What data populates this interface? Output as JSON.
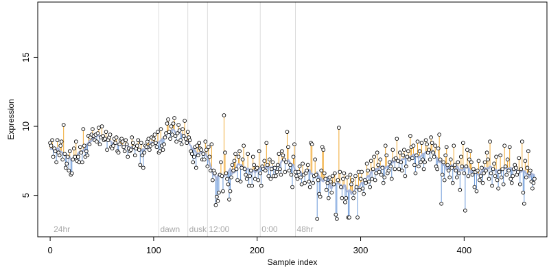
{
  "chart_data": {
    "type": "scatter",
    "title": "",
    "xlabel": "Sample index",
    "ylabel": "Expression",
    "xlim": [
      -12,
      480
    ],
    "ylim": [
      2,
      19
    ],
    "xticks": [
      0,
      100,
      200,
      300,
      400
    ],
    "yticks": [
      5,
      10,
      15
    ],
    "grid": false,
    "legend": "none",
    "baseline": {
      "description": "smoothed trend line drawn from points",
      "color": "#a6b4d8"
    },
    "stem_colors": {
      "above": "#f0a830",
      "below": "#6a98d8"
    },
    "point_style": {
      "fill": "#ffffff",
      "stroke": "#000000"
    },
    "markers": [
      {
        "x": 2,
        "label": "24hr"
      },
      {
        "x": 105,
        "label": "dawn"
      },
      {
        "x": 133,
        "label": "dusk"
      },
      {
        "x": 152,
        "label": "12:00"
      },
      {
        "x": 203,
        "label": "0:00"
      },
      {
        "x": 237,
        "label": "48hr"
      }
    ],
    "series": [
      {
        "values": [
          8.8,
          8.6,
          9.0,
          7.8,
          8.4,
          8.2,
          7.4,
          9.0,
          8.1,
          7.9,
          8.6,
          8.9,
          7.6,
          10.1,
          8.0,
          7.0,
          7.3,
          7.8,
          6.8,
          8.2,
          6.5,
          6.6,
          7.6,
          8.4,
          7.8,
          8.9,
          7.5,
          7.8,
          7.4,
          8.5,
          8.1,
          7.4,
          9.8,
          8.6,
          7.8,
          8.2,
          7.9,
          9.3,
          8.7,
          9.2,
          9.4,
          9.8,
          9.3,
          9.0,
          9.4,
          8.9,
          9.5,
          9.9,
          8.7,
          9.2,
          10.0,
          9.3,
          9.0,
          9.1,
          9.6,
          8.3,
          9.0,
          9.2,
          9.4,
          8.5,
          8.4,
          8.6,
          9.1,
          8.8,
          9.2,
          8.2,
          8.1,
          8.7,
          9.0,
          9.1,
          8.9,
          8.5,
          8.2,
          9.0,
          8.7,
          7.8,
          8.4,
          8.2,
          8.3,
          9.2,
          8.8,
          8.5,
          7.9,
          8.4,
          8.6,
          9.0,
          8.3,
          7.2,
          8.8,
          7.9,
          7.0,
          8.1,
          8.6,
          8.5,
          8.9,
          9.1,
          8.3,
          8.6,
          9.2,
          8.7,
          9.1,
          9.4,
          8.8,
          8.5,
          9.6,
          8.1,
          8.2,
          9.8,
          8.6,
          8.3,
          8.7,
          9.2,
          9.5,
          10.2,
          10.5,
          9.6,
          9.1,
          10.0,
          9.4,
          10.2,
          10.6,
          9.3,
          8.9,
          9.5,
          10.1,
          9.7,
          9.0,
          8.7,
          9.8,
          9.3,
          10.4,
          9.1,
          8.8,
          9.6,
          9.2,
          9.0,
          8.2,
          8.0,
          7.4,
          7.8,
          8.5,
          7.0,
          8.6,
          7.9,
          8.8,
          8.4,
          8.3,
          7.6,
          8.0,
          7.6,
          8.9,
          8.3,
          7.1,
          8.5,
          7.8,
          6.8,
          8.7,
          6.1,
          6.8,
          6.6,
          4.3,
          4.9,
          4.6,
          5.2,
          6.5,
          7.4,
          6.4,
          5.3,
          10.8,
          8.1,
          6.6,
          6.2,
          5.8,
          4.7,
          5.3,
          6.3,
          7.2,
          6.8,
          7.5,
          8.0,
          6.9,
          6.1,
          7.8,
          8.2,
          6.0,
          7.0,
          7.6,
          8.6,
          6.9,
          6.5,
          6.2,
          8.0,
          5.7,
          6.4,
          6.8,
          5.7,
          7.8,
          7.2,
          6.2,
          6.9,
          7.0,
          6.1,
          8.2,
          6.6,
          5.7,
          7.1,
          6.9,
          7.5,
          6.8,
          8.8,
          7.2,
          6.4,
          7.6,
          6.2,
          6.9,
          7.4,
          6.4,
          7.0,
          6.4,
          6.7,
          7.2,
          8.0,
          6.9,
          6.5,
          8.2,
          7.9,
          7.6,
          6.7,
          7.4,
          9.6,
          8.5,
          6.8,
          7.2,
          6.5,
          5.6,
          7.8,
          8.7,
          6.7,
          6.4,
          6.2,
          6.7,
          7.1,
          6.3,
          5.8,
          7.3,
          6.5,
          5.9,
          6.6,
          6.8,
          7.2,
          6.0,
          5.6,
          8.8,
          8.7,
          5.9,
          6.4,
          7.6,
          6.5,
          3.3,
          6.1,
          5.1,
          4.9,
          6.8,
          8.5,
          8.3,
          6.6,
          6.2,
          5.4,
          5.9,
          4.8,
          6.3,
          6.0,
          5.2,
          6.4,
          5.8,
          6.6,
          3.6,
          3.3,
          6.1,
          9.9,
          6.7,
          5.6,
          4.8,
          6.2,
          6.6,
          4.5,
          4.8,
          6.3,
          3.4,
          3.4,
          6.5,
          5.8,
          6.1,
          4.8,
          5.2,
          6.4,
          5.6,
          3.4,
          6.7,
          5.4,
          6.2,
          6.7,
          5.5,
          5.1,
          6.1,
          5.9,
          7.3,
          6.8,
          6.0,
          5.6,
          7.5,
          6.2,
          6.9,
          7.8,
          6.1,
          6.6,
          8.1,
          7.2,
          6.7,
          7.6,
          6.5,
          7.0,
          5.9,
          6.3,
          8.6,
          7.9,
          6.6,
          6.8,
          7.4,
          7.1,
          6.2,
          8.3,
          7.6,
          6.9,
          7.7,
          9.1,
          7.5,
          6.9,
          8.1,
          7.4,
          6.8,
          7.9,
          8.3,
          6.4,
          7.1,
          7.8,
          8.2,
          7.6,
          9.3,
          8.5,
          7.7,
          8.6,
          7.2,
          6.6,
          7.9,
          8.9,
          7.1,
          8.2,
          7.4,
          8.8,
          7.6,
          6.9,
          7.4,
          9.0,
          8.7,
          8.1,
          8.3,
          7.6,
          9.2,
          8.8,
          8.1,
          7.8,
          8.6,
          7.1,
          6.9,
          8.4,
          9.4,
          7.6,
          4.4,
          6.5,
          7.4,
          6.1,
          7.9,
          8.5,
          7.2,
          6.8,
          6.3,
          7.6,
          7.0,
          5.9,
          8.6,
          7.2,
          6.8,
          6.3,
          7.4,
          6.6,
          5.4,
          7.8,
          7.1,
          8.8,
          6.6,
          3.9,
          7.1,
          8.3,
          6.4,
          7.6,
          8.2,
          7.4,
          6.5,
          6.9,
          5.6,
          6.7,
          5.3,
          6.8,
          7.5,
          6.1,
          6.4,
          7.0,
          5.9,
          6.6,
          7.4,
          6.8,
          8.1,
          7.6,
          6.2,
          8.9,
          6.6,
          5.7,
          6.9,
          7.3,
          6.4,
          7.8,
          6.1,
          5.5,
          6.7,
          7.9,
          6.3,
          6.9,
          5.8,
          8.6,
          7.1,
          6.5,
          7.6,
          6.8,
          8.5,
          6.2,
          5.9,
          6.4,
          6.9,
          7.2,
          7.0,
          6.5,
          6.7,
          7.7,
          5.8,
          6.9,
          8.9,
          5.2,
          4.4,
          7.5,
          6.3,
          7.0,
          8.2,
          6.6,
          6.8,
          6.0,
          5.5,
          5.9,
          6.2
        ]
      }
    ]
  }
}
